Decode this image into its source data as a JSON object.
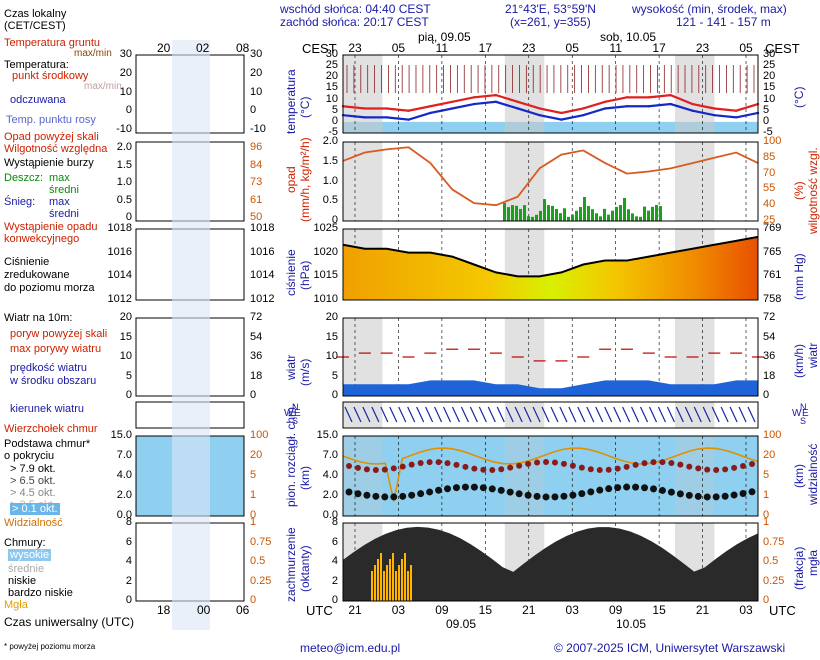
{
  "header": {
    "sunrise": "wschód słońca: 04:40 CEST",
    "sunset": "zachód słońca: 20:17 CEST",
    "coords": "21°43'E, 53°59'N",
    "grid": "(x=261,  y=355)",
    "elevation_title": "wysokość (min, środek, max)",
    "elevation_values": "121 - 141 - 157 m"
  },
  "dates": {
    "day1": "pią, 09.05",
    "day2": "sob, 10.05",
    "bottom1": "09.05",
    "bottom2": "10.05"
  },
  "time": {
    "cest_label": "CEST",
    "utc_label": "UTC",
    "cest_ticks": [
      "23",
      "05",
      "11",
      "17",
      "23",
      "05",
      "11",
      "17",
      "23",
      "05"
    ],
    "utc_ticks": [
      "21",
      "03",
      "09",
      "15",
      "21",
      "03",
      "09",
      "15",
      "21",
      "03"
    ],
    "legend_top_ticks": [
      "20",
      "02",
      "08"
    ],
    "legend_bottom_ticks": [
      "18",
      "00",
      "06"
    ]
  },
  "legend": {
    "local_time": "Czas lokalny",
    "local_time2": "(CET/CEST)",
    "soil_temp": "Temperatura gruntu",
    "maxmin": "max/min",
    "temperature": "Temperatura:",
    "mid_point": "punkt środkowy",
    "maxmin2": "max/min",
    "felt": "odczuwana",
    "dew": "Temp. punktu rosy",
    "precip_above": "Opad powyżej skali",
    "humidity": "Wilgotność względna",
    "storm": "Wystąpienie burzy",
    "rain": "Deszcz:",
    "max": "max",
    "mean": "średni",
    "snow": "Śnieg:",
    "max2": "max",
    "mean2": "średni",
    "conv1": "Wystąpienie opadu",
    "conv2": "konwekcyjnego",
    "pressure1": "Ciśnienie",
    "pressure2": "zredukowane",
    "pressure3": "do poziomu morza",
    "wind": "Wiatr na 10m:",
    "gust_above": "poryw powyżej skali",
    "gust_max": "max porywy wiatru",
    "wind_speed1": "prędkość wiatru",
    "wind_speed2": "w środku obszaru",
    "wind_dir": "kierunek wiatru",
    "cloud_top": "Wierzchołek chmur",
    "cloud_base1": "Podstawa chmur*",
    "cloud_base2": "o pokryciu",
    "okt79": "> 7.9 okt.",
    "okt65": "> 6.5 okt.",
    "okt45": "> 4.5 okt.",
    "okt25": "> 2.5 okt.",
    "okt01": "> 0.1 okt.",
    "visibility": "Widzialność",
    "clouds": "Chmury:",
    "high": "wysokie",
    "mid": "średnie",
    "low": "niskie",
    "vlow": "bardzo niskie",
    "fog": "Mgła",
    "utc_time": "Czas uniwersalny (UTC)",
    "footnote": "* powyżej poziomu morza"
  },
  "axis": {
    "temperature": "temperatura",
    "temp_unit": "(°C)",
    "precip": "opad",
    "precip_unit": "(mm/h, kg/m²/h)",
    "humidity": "wilgotność wzgl.",
    "humidity_unit": "(%)",
    "pressure": "ciśnienie",
    "pressure_unit": "(hPa)",
    "pressure_unit2": "(mm Hg)",
    "wind": "wiatr",
    "wind_unit": "(m/s)",
    "wind_unit2": "(km/h)",
    "cloud1": "pion. rozciągł. chm.",
    "cloud_unit": "(km)",
    "visibility": "widzialność",
    "vis_unit": "(km)",
    "cover1": "zachmurzenie",
    "cover_unit": "(oktanty)",
    "fog": "mgła",
    "fog_unit": "(frakcja)",
    "compass_n": "N",
    "compass_w": "W",
    "compass_e": "E",
    "compass_s": "S"
  },
  "ticks": {
    "temp_left": [
      "30",
      "25",
      "20",
      "15",
      "10",
      "5",
      "0",
      "-5"
    ],
    "temp_right": [
      "30",
      "25",
      "20",
      "15",
      "10",
      "5",
      "0",
      "-5"
    ],
    "precip_left": [
      "2.0",
      "1.5",
      "1.0",
      "0.5",
      "0"
    ],
    "humidity_right": [
      "100",
      "85",
      "70",
      "55",
      "40",
      "25"
    ],
    "pressure_left": [
      "1025",
      "1020",
      "1015",
      "1010"
    ],
    "pressure_right": [
      "769",
      "765",
      "761",
      "758"
    ],
    "wind_left": [
      "20",
      "15",
      "10",
      "5",
      "0"
    ],
    "wind_right": [
      "72",
      "54",
      "36",
      "18",
      "0"
    ],
    "cloud_left": [
      "15.0",
      "7.0",
      "4.0",
      "2.0",
      "0.0"
    ],
    "vis_right": [
      "100",
      "20",
      "5",
      "1",
      "0"
    ],
    "cover_left": [
      "8",
      "6",
      "4",
      "2",
      "0"
    ],
    "fog_right": [
      "1",
      "0.75",
      "0.5",
      "0.25",
      "0"
    ],
    "legend_temp": [
      "30",
      "20",
      "10",
      "0",
      "-10"
    ],
    "legend_precip": [
      "2.0",
      "1.5",
      "1.0",
      "0.5",
      "0"
    ],
    "legend_hum": [
      "96",
      "84",
      "73",
      "61",
      "50"
    ],
    "legend_press": [
      "1018",
      "1016",
      "1014",
      "1012"
    ],
    "legend_wind": [
      "20",
      "15",
      "10",
      "5",
      "0"
    ],
    "legend_wind_kmh": [
      "72",
      "54",
      "36",
      "18",
      "0"
    ],
    "legend_cloud": [
      "15.0",
      "7.0",
      "4.0",
      "2.0",
      "0.0"
    ],
    "legend_vis": [
      "100",
      "20",
      "5",
      "1",
      "0"
    ],
    "legend_cover": [
      "8",
      "6",
      "4",
      "2",
      "0"
    ],
    "legend_fog": [
      "1",
      "0.75",
      "0.5",
      "0.25",
      "0"
    ]
  },
  "footer": {
    "email": "meteo@icm.edu.pl",
    "copyright": "© 2007-2025 ICM, Uniwersytet Warszawski"
  },
  "colors": {
    "panel_bg": "#8fd0f0",
    "temp_red": "#e02020",
    "felt_blue": "#1428c8",
    "humidity": "#d85a20",
    "rain_green": "#1aa01a",
    "wind_blue": "#1e64d8",
    "pressure_yellow": "#f4f000",
    "pressure_orange": "#f08a00",
    "cloud_dark": "#303030",
    "fog_orange": "#ffb400"
  },
  "chart_data": [
    {
      "type": "line",
      "x": [
        "21",
        "00",
        "03",
        "06",
        "09",
        "12",
        "15",
        "18",
        "21",
        "00",
        "03",
        "06",
        "09",
        "12",
        "15",
        "18",
        "21",
        "00",
        "03",
        "06"
      ],
      "series": [
        {
          "name": "punkt środkowy",
          "values": [
            7,
            6,
            6,
            5,
            7,
            9,
            11,
            12,
            9,
            6,
            4,
            6,
            9,
            11,
            11,
            12,
            8,
            6,
            5,
            8
          ]
        },
        {
          "name": "odczuwana",
          "values": [
            3,
            2,
            2,
            1,
            4,
            6,
            8,
            9,
            6,
            3,
            1,
            3,
            6,
            7,
            7,
            8,
            5,
            3,
            2,
            4
          ]
        }
      ],
      "ylim": [
        -5,
        30
      ]
    },
    {
      "type": "line",
      "series": [
        {
          "name": "Wilgotność względna",
          "values": [
            82,
            90,
            93,
            95,
            80,
            55,
            42,
            40,
            48,
            75,
            88,
            92,
            80,
            70,
            72,
            75,
            80,
            85,
            90,
            80
          ]
        }
      ],
      "ylim": [
        25,
        100
      ]
    },
    {
      "type": "line",
      "series": [
        {
          "name": "Ciśnienie",
          "values": [
            1021,
            1020,
            1020,
            1019,
            1019,
            1018,
            1016,
            1014,
            1013,
            1013,
            1014,
            1016,
            1017,
            1017,
            1018,
            1019,
            1020,
            1021,
            1022,
            1023
          ]
        }
      ],
      "ylim": [
        1007,
        1025
      ]
    },
    {
      "type": "line",
      "series": [
        {
          "name": "max porywy wiatru",
          "values": [
            10,
            11,
            11,
            10,
            11,
            12,
            12,
            11,
            10,
            9,
            9,
            10,
            12,
            12,
            11,
            10,
            10,
            11,
            11,
            10
          ]
        },
        {
          "name": "prędkość wiatru",
          "values": [
            3,
            3,
            3,
            3,
            4,
            4,
            4,
            3,
            3,
            2,
            2,
            3,
            4,
            4,
            4,
            3,
            3,
            3,
            4,
            4
          ]
        }
      ],
      "ylim": [
        0,
        20
      ]
    }
  ]
}
